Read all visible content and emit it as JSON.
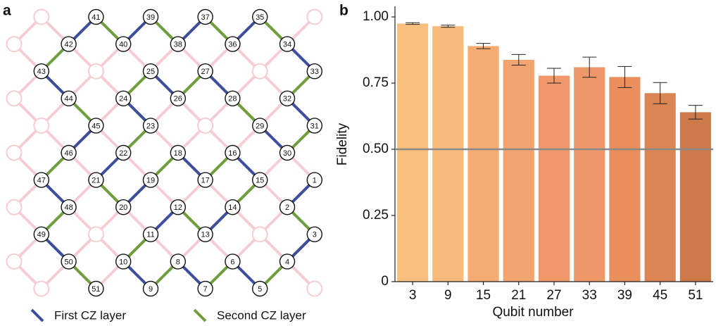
{
  "panel_a": {
    "label": "a",
    "qubits": [
      "1",
      "2",
      "3",
      "4",
      "5",
      "6",
      "7",
      "8",
      "9",
      "10",
      "11",
      "12",
      "13",
      "14",
      "15",
      "16",
      "17",
      "18",
      "19",
      "20",
      "21",
      "22",
      "23",
      "24",
      "25",
      "26",
      "27",
      "28",
      "29",
      "30",
      "31",
      "32",
      "33",
      "34",
      "35",
      "36",
      "37",
      "38",
      "39",
      "40",
      "41",
      "42",
      "43",
      "44",
      "45",
      "46",
      "47",
      "48",
      "49",
      "50",
      "51"
    ],
    "legend": [
      {
        "name": "First CZ layer",
        "color": "#3d4e9c"
      },
      {
        "name": "Second CZ layer",
        "color": "#6f9e3e"
      }
    ],
    "idle_color": "#f5cdd3"
  },
  "chart_data": {
    "type": "bar",
    "panel_label": "b",
    "xlabel": "Qubit number",
    "ylabel": "Fidelity",
    "categories": [
      "3",
      "9",
      "15",
      "21",
      "27",
      "33",
      "39",
      "45",
      "51"
    ],
    "values": [
      0.975,
      0.965,
      0.89,
      0.838,
      0.778,
      0.81,
      0.773,
      0.712,
      0.64
    ],
    "errors": [
      0.003,
      0.004,
      0.01,
      0.02,
      0.028,
      0.038,
      0.04,
      0.04,
      0.026
    ],
    "colors": [
      "#f7c07f",
      "#f6bb7c",
      "#f4ac72",
      "#f2a470",
      "#f0986a",
      "#ee9768",
      "#e98e5c",
      "#da8553",
      "#cc7a4a"
    ],
    "ylim": [
      0,
      1.04
    ],
    "yticks": [
      0,
      0.25,
      {
        "value": 0.5,
        "label": "0.50"
      },
      0.75,
      {
        "value": 1,
        "label": "1.00"
      }
    ],
    "reference_line": 0.5,
    "reference_color": "#8a8a8a"
  }
}
